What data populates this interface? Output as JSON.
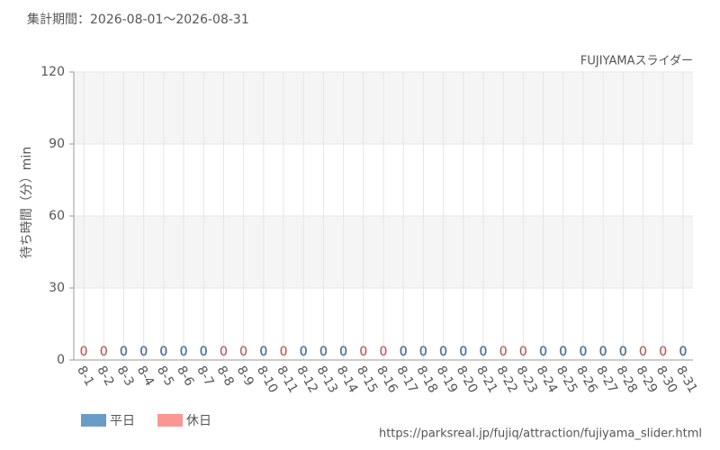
{
  "chart_data": {
    "type": "bar",
    "title": "集計期間：2026-08-01～2026-08-31",
    "subtitle": "FUJIYAMAスライダー",
    "y_label": "待ち時間（分）min",
    "source": "https://parksreal.jp/fujiq/attraction/fujiyama_slider.html",
    "categories": [
      "8-1",
      "8-2",
      "8-3",
      "8-4",
      "8-5",
      "8-6",
      "8-7",
      "8-8",
      "8-9",
      "8-10",
      "8-11",
      "8-12",
      "8-13",
      "8-14",
      "8-15",
      "8-16",
      "8-17",
      "8-18",
      "8-19",
      "8-20",
      "8-21",
      "8-22",
      "8-23",
      "8-24",
      "8-25",
      "8-26",
      "8-27",
      "8-28",
      "8-29",
      "8-30",
      "8-31"
    ],
    "series": [
      {
        "name": "平日",
        "color": "#6a9cc8",
        "values": [
          null,
          null,
          0,
          0,
          0,
          0,
          0,
          null,
          null,
          0,
          null,
          0,
          0,
          0,
          null,
          null,
          0,
          0,
          0,
          0,
          0,
          null,
          null,
          0,
          0,
          0,
          0,
          0,
          null,
          null,
          0
        ]
      },
      {
        "name": "休日",
        "color": "#fa9694",
        "values": [
          0,
          0,
          null,
          null,
          null,
          null,
          null,
          0,
          0,
          null,
          0,
          null,
          null,
          null,
          0,
          0,
          null,
          null,
          null,
          null,
          null,
          0,
          0,
          null,
          null,
          null,
          null,
          null,
          0,
          0,
          null
        ]
      }
    ],
    "ylim": [
      0,
      120
    ],
    "yticks": [
      0,
      30,
      60,
      90,
      120
    ],
    "grid": true
  }
}
